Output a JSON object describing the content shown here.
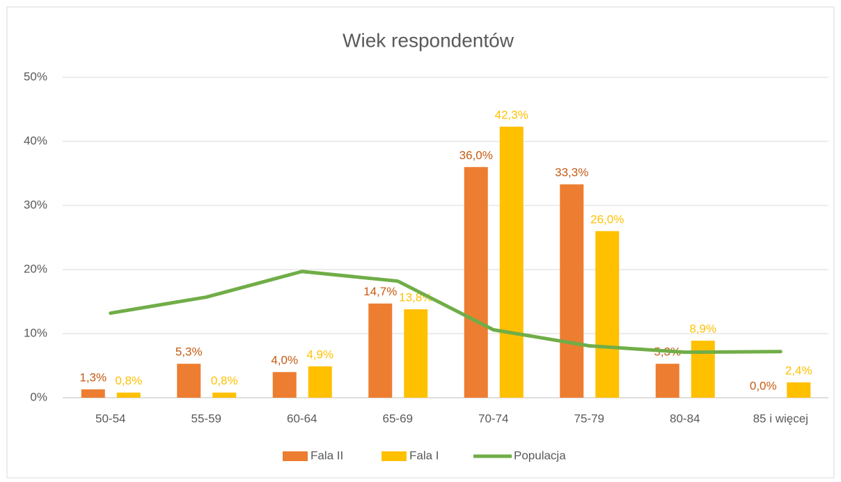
{
  "chart_data": {
    "type": "bar_line",
    "title": "Wiek respondentów",
    "categories": [
      "50-54",
      "55-59",
      "60-64",
      "65-69",
      "70-74",
      "75-79",
      "80-84",
      "85 i więcej"
    ],
    "series": [
      {
        "name": "Fala II",
        "type": "bar",
        "color": "#ed7d31",
        "label_color": "#c55a11",
        "values": [
          1.3,
          5.3,
          4.0,
          14.7,
          36.0,
          33.3,
          5.3,
          0.0
        ],
        "value_labels": [
          "1,3%",
          "5,3%",
          "4,0%",
          "14,7%",
          "36,0%",
          "33,3%",
          "5,3%",
          "0,0%"
        ]
      },
      {
        "name": "Fala I",
        "type": "bar",
        "color": "#ffc000",
        "label_color": "#ffc000",
        "values": [
          0.8,
          0.8,
          4.9,
          13.8,
          42.3,
          26.0,
          8.9,
          2.4
        ],
        "value_labels": [
          "0,8%",
          "0,8%",
          "4,9%",
          "13,8%",
          "42,3%",
          "26,0%",
          "8,9%",
          "2,4%"
        ]
      },
      {
        "name": "Populacja",
        "type": "line",
        "color": "#70ad47",
        "values": [
          13.2,
          15.7,
          19.7,
          18.2,
          10.6,
          8.1,
          7.1,
          7.2
        ]
      }
    ],
    "ylim": [
      0,
      50
    ],
    "yticks": [
      {
        "value": 0,
        "label": "0%"
      },
      {
        "value": 10,
        "label": "10%"
      },
      {
        "value": 20,
        "label": "20%"
      },
      {
        "value": 30,
        "label": "30%"
      },
      {
        "value": 40,
        "label": "40%"
      },
      {
        "value": 50,
        "label": "50%"
      }
    ],
    "grid": true,
    "legend": "bottom"
  }
}
